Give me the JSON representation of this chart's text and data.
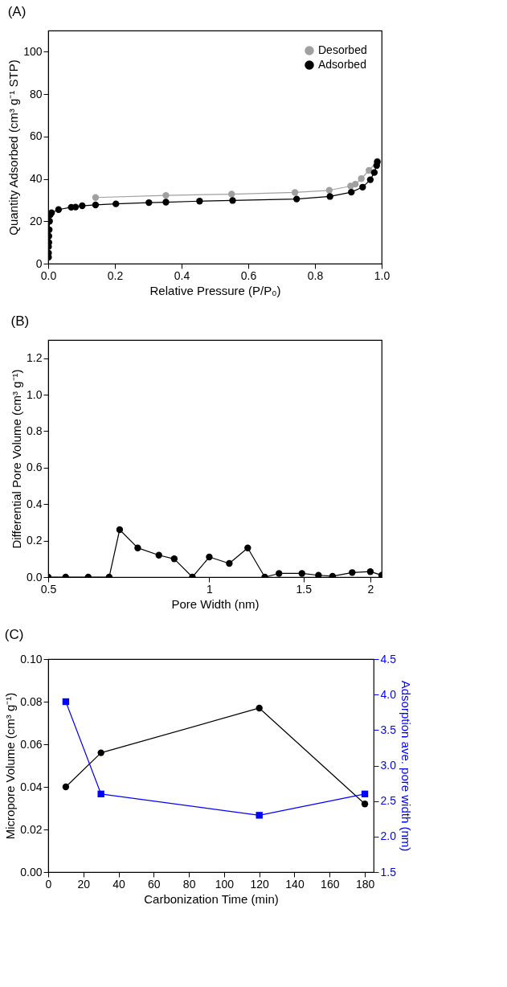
{
  "chart_data": [
    {
      "type": "line",
      "title": "(A)",
      "xlabel": "Relative Pressure (P/P₀)",
      "ylabel": "Quantity Adsorbed (cm³ g⁻¹ STP)",
      "xlim": [
        0,
        1
      ],
      "ylim": [
        0,
        110
      ],
      "xticks": [
        {
          "value": 0,
          "label": "0.0"
        },
        {
          "value": 0.2,
          "label": "0.2"
        },
        {
          "value": 0.4,
          "label": "0.4"
        },
        {
          "value": 0.6,
          "label": "0.6"
        },
        {
          "value": 0.8,
          "label": "0.8"
        },
        {
          "value": 1,
          "label": "1.0"
        }
      ],
      "yticks": [
        0,
        20,
        40,
        60,
        80,
        100
      ],
      "grid": false,
      "legend": "top right",
      "marker": "circle",
      "line_style": "solid",
      "series": [
        {
          "name": "Desorbed",
          "color": "#a0a0a0",
          "x": [
            0.142,
            0.353,
            0.55,
            0.74,
            0.843,
            0.907,
            0.921,
            0.939,
            0.962,
            0.987
          ],
          "values": [
            31.2,
            32.2,
            32.8,
            33.6,
            34.6,
            36.6,
            37.5,
            40.1,
            44,
            48.3
          ]
        },
        {
          "name": "Adsorbed",
          "color": "#000000",
          "x": [
            0.001,
            0.001,
            0.001,
            0.002,
            0.002,
            0.003,
            0.004,
            0.006,
            0.01,
            0.031,
            0.069,
            0.082,
            0.102,
            0.142,
            0.203,
            0.302,
            0.353,
            0.454,
            0.553,
            0.745,
            0.845,
            0.909,
            0.943,
            0.966,
            0.978,
            0.985,
            0.987
          ],
          "values": [
            3,
            5,
            8,
            10,
            13,
            16,
            20,
            23,
            24,
            25.5,
            26.6,
            26.7,
            27.3,
            27.7,
            28.2,
            28.8,
            29,
            29.5,
            29.8,
            30.5,
            31.7,
            33.7,
            36.1,
            39.6,
            43,
            46.3,
            48
          ]
        }
      ]
    },
    {
      "type": "line",
      "title": "(B)",
      "xlabel": "Pore Width (nm)",
      "ylabel": "Differential Pore Volume (cm³ g⁻¹)",
      "log": "x",
      "xlim": [
        0.5,
        2.1
      ],
      "ylim": [
        0,
        1.3
      ],
      "xticks": [
        0.5,
        1,
        1.5,
        2
      ],
      "yticks": [
        {
          "value": 0,
          "label": "0.0"
        },
        {
          "value": 0.2,
          "label": "0.2"
        },
        {
          "value": 0.4,
          "label": "0.4"
        },
        {
          "value": 0.6,
          "label": "0.6"
        },
        {
          "value": 0.8,
          "label": "0.8"
        },
        {
          "value": 1,
          "label": "1.0"
        },
        {
          "value": 1.2,
          "label": "1.2"
        }
      ],
      "grid": false,
      "marker": "circle",
      "line_style": "solid",
      "series": [
        {
          "color": "#000000",
          "x": [
            0.5,
            0.539,
            0.594,
            0.65,
            0.68,
            0.735,
            0.805,
            0.86,
            0.93,
            1.0,
            1.09,
            1.18,
            1.27,
            1.35,
            1.49,
            1.6,
            1.7,
            1.85,
            2.0,
            2.1
          ],
          "values": [
            0,
            0,
            0,
            0,
            0.26,
            0.16,
            0.12,
            0.1,
            0,
            0.11,
            0.075,
            0.16,
            0,
            0.02,
            0.02,
            0.01,
            0.005,
            0.025,
            0.03,
            0.01
          ]
        }
      ]
    },
    {
      "type": "line",
      "title": "(C)",
      "xlabel": "Carbonization Time (min)",
      "ylabel": "Micropore Volume (cm³ g⁻¹)",
      "y2label": "Adsorption ave. pore width (nm)",
      "xlim": [
        0,
        185
      ],
      "ylim": [
        0,
        0.1
      ],
      "y2lim": [
        1.5,
        4.5
      ],
      "xticks": [
        0,
        20,
        40,
        60,
        80,
        100,
        120,
        140,
        160,
        180
      ],
      "yticks": [
        {
          "value": 0,
          "label": "0.00"
        },
        {
          "value": 0.02,
          "label": "0.02"
        },
        {
          "value": 0.04,
          "label": "0.04"
        },
        {
          "value": 0.06,
          "label": "0.06"
        },
        {
          "value": 0.08,
          "label": "0.08"
        },
        {
          "value": 0.1,
          "label": "0.10"
        }
      ],
      "y2ticks": [
        1.5,
        {
          "value": 2,
          "label": "2.0"
        },
        2.5,
        {
          "value": 3,
          "label": "3.0"
        },
        3.5,
        {
          "value": 4,
          "label": "4.0"
        },
        4.5
      ],
      "grid": false,
      "line_style": "solid",
      "series": [
        {
          "color": "#000000",
          "marker": "circle",
          "x": [
            10,
            30,
            120,
            180
          ],
          "values": [
            0.04,
            0.056,
            0.077,
            0.032
          ]
        },
        {
          "color": "#0000ff",
          "marker": "square",
          "axis": "y2",
          "x": [
            10,
            30,
            120,
            180
          ],
          "values": [
            3.9,
            2.6,
            2.3,
            2.6
          ]
        }
      ]
    }
  ]
}
